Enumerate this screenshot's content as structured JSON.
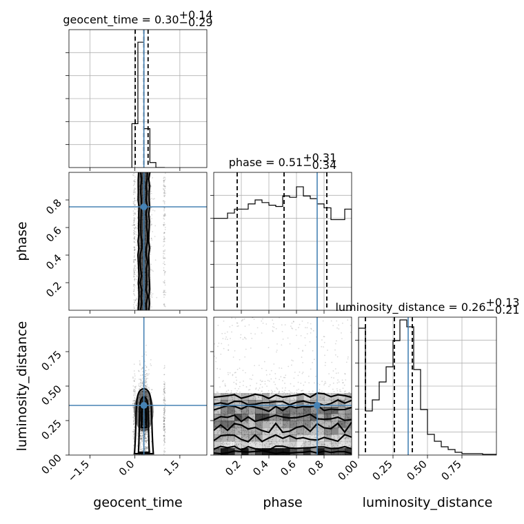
{
  "chart_data": {
    "type": "corner",
    "parameters": [
      "geocent_time",
      "phase",
      "luminosity_distance"
    ],
    "truths": {
      "geocent_time": 0.3,
      "phase": 0.75,
      "luminosity_distance": 0.36
    },
    "axes": {
      "geocent_time": {
        "label": "geocent_time",
        "lim": [
          -2.2,
          2.4
        ],
        "ticks": [
          -1.5,
          0.0,
          1.5
        ],
        "ticklabels": [
          "−1.5",
          "0.0",
          "1.5"
        ]
      },
      "phase": {
        "label": "phase",
        "lim": [
          0.0,
          1.0
        ],
        "ticks": [
          0.2,
          0.4,
          0.6,
          0.8
        ],
        "ticklabels": [
          "0.2",
          "0.4",
          "0.6",
          "0.8"
        ]
      },
      "luminosity_distance": {
        "label": "luminosity_distance",
        "lim": [
          0.0,
          1.0
        ],
        "ticks": [
          0.0,
          0.25,
          0.5,
          0.75
        ],
        "ticklabels": [
          "0.00",
          "0.25",
          "0.50",
          "0.75"
        ]
      }
    },
    "diagonal": [
      {
        "param": "geocent_time",
        "title": {
          "name": "geocent_time",
          "median": "0.30",
          "plus": "+0.14",
          "minus": "−0.29"
        },
        "quantiles": [
          0.01,
          0.3,
          0.44
        ],
        "truth": 0.3,
        "bin_edges": [
          -0.1,
          0.1,
          0.3,
          0.5,
          0.7,
          1.0
        ],
        "counts": [
          0.35,
          1.0,
          0.31,
          0.04,
          0.0
        ],
        "ymax": 1.1
      },
      {
        "param": "phase",
        "title": {
          "name": "phase",
          "median": "0.51",
          "plus": "+0.31",
          "minus": "−0.34"
        },
        "quantiles": [
          0.17,
          0.51,
          0.82
        ],
        "truth": 0.75,
        "bin_edges": [
          0.0,
          0.05,
          0.1,
          0.15,
          0.2,
          0.25,
          0.3,
          0.35,
          0.4,
          0.45,
          0.5,
          0.55,
          0.6,
          0.65,
          0.7,
          0.75,
          0.8,
          0.85,
          0.9,
          0.95,
          1.0
        ],
        "counts": [
          0.7,
          0.7,
          0.74,
          0.77,
          0.77,
          0.81,
          0.84,
          0.82,
          0.8,
          0.79,
          0.87,
          0.86,
          0.94,
          0.87,
          0.85,
          0.81,
          0.78,
          0.69,
          0.69,
          0.77
        ],
        "ymax": 1.05
      },
      {
        "param": "luminosity_distance",
        "title": {
          "name": "luminosity_distance",
          "median": "0.26",
          "plus": "+0.13",
          "minus": "−0.21"
        },
        "quantiles": [
          0.05,
          0.26,
          0.39
        ],
        "truth": 0.36,
        "bin_edges": [
          0.0,
          0.05,
          0.1,
          0.15,
          0.2,
          0.25,
          0.3,
          0.35,
          0.4,
          0.45,
          0.5,
          0.55,
          0.6,
          0.65,
          0.7,
          0.75,
          0.8,
          0.85,
          0.9,
          0.95,
          1.0
        ],
        "counts": [
          0.92,
          0.32,
          0.4,
          0.53,
          0.64,
          0.83,
          0.98,
          0.93,
          0.62,
          0.33,
          0.15,
          0.1,
          0.06,
          0.04,
          0.02,
          0.01,
          0.01,
          0.01,
          0.005,
          0.005
        ],
        "ymax": 1.0
      }
    ],
    "pairs": [
      {
        "x": "geocent_time",
        "y": "phase"
      },
      {
        "x": "geocent_time",
        "y": "luminosity_distance"
      },
      {
        "x": "phase",
        "y": "luminosity_distance"
      }
    ]
  }
}
